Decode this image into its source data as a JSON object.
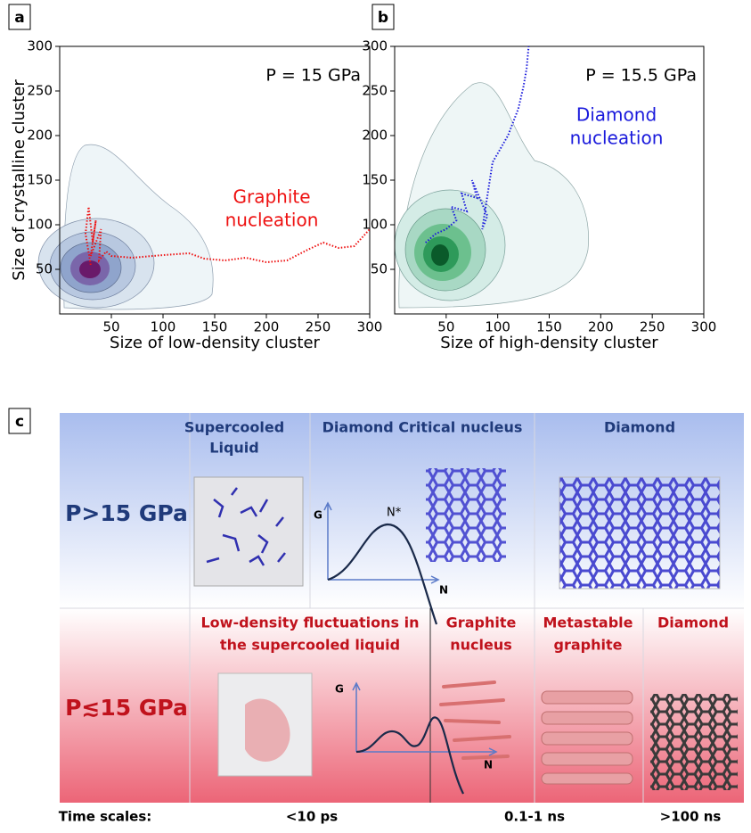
{
  "chart_data": [
    {
      "type": "line",
      "panel": "a",
      "annotation": "P = 15 GPa",
      "label": [
        "Graphite",
        "nucleation"
      ],
      "xlabel": "Size of low-density cluster",
      "ylabel": "Size of crystalline cluster",
      "xlim": [
        0,
        300
      ],
      "ylim": [
        0,
        300
      ],
      "xticks": [
        50,
        100,
        150,
        200,
        250,
        300
      ],
      "yticks": [
        50,
        100,
        150,
        200,
        250,
        300
      ],
      "series": [
        {
          "color": "#ee1111",
          "x": [
            30,
            25,
            28,
            32,
            35,
            30,
            40,
            38,
            45,
            50,
            70,
            100,
            125,
            140,
            160,
            180,
            200,
            220,
            240,
            255,
            270,
            285,
            300
          ],
          "values": [
            55,
            90,
            120,
            80,
            105,
            65,
            95,
            60,
            70,
            65,
            63,
            66,
            68,
            62,
            60,
            63,
            58,
            60,
            72,
            80,
            74,
            76,
            95
          ]
        }
      ]
    },
    {
      "type": "line",
      "panel": "b",
      "annotation": "P = 15.5 GPa",
      "label": [
        "Diamond",
        "nucleation"
      ],
      "xlabel": "Size of high-density cluster",
      "xlim": [
        0,
        300
      ],
      "ylim": [
        0,
        300
      ],
      "xticks": [
        50,
        100,
        150,
        200,
        250,
        300
      ],
      "yticks": [
        50,
        100,
        150,
        200,
        250,
        300
      ],
      "series": [
        {
          "color": "#1a1adc",
          "x": [
            30,
            40,
            50,
            60,
            55,
            70,
            65,
            80,
            75,
            90,
            85,
            95,
            100,
            110,
            115,
            120,
            123,
            125,
            128,
            130
          ],
          "values": [
            80,
            90,
            95,
            105,
            120,
            115,
            135,
            130,
            150,
            110,
            95,
            170,
            180,
            200,
            215,
            230,
            245,
            255,
            275,
            300
          ]
        }
      ]
    }
  ],
  "diagram": {
    "panel": "c",
    "top": {
      "label": "P>15 GPa",
      "headers": [
        [
          "Supercooled",
          "Liquid"
        ],
        [
          "Diamond Critical nucleus"
        ],
        [
          "Diamond"
        ]
      ],
      "axes": [
        "G",
        "N",
        "N*"
      ]
    },
    "bottom": {
      "label": "P≲15 GPa",
      "headers": [
        [
          "Low-density fluctuations in",
          "the supercooled liquid"
        ],
        [
          "Graphite",
          "nucleus"
        ],
        [
          "Metastable",
          "graphite"
        ],
        [
          "Diamond"
        ]
      ],
      "axes": [
        "G",
        "N"
      ]
    },
    "time_scales": {
      "label": "Time scales:",
      "values": [
        "<10 ps",
        "0.1-1 ns",
        ">100 ns"
      ]
    }
  }
}
